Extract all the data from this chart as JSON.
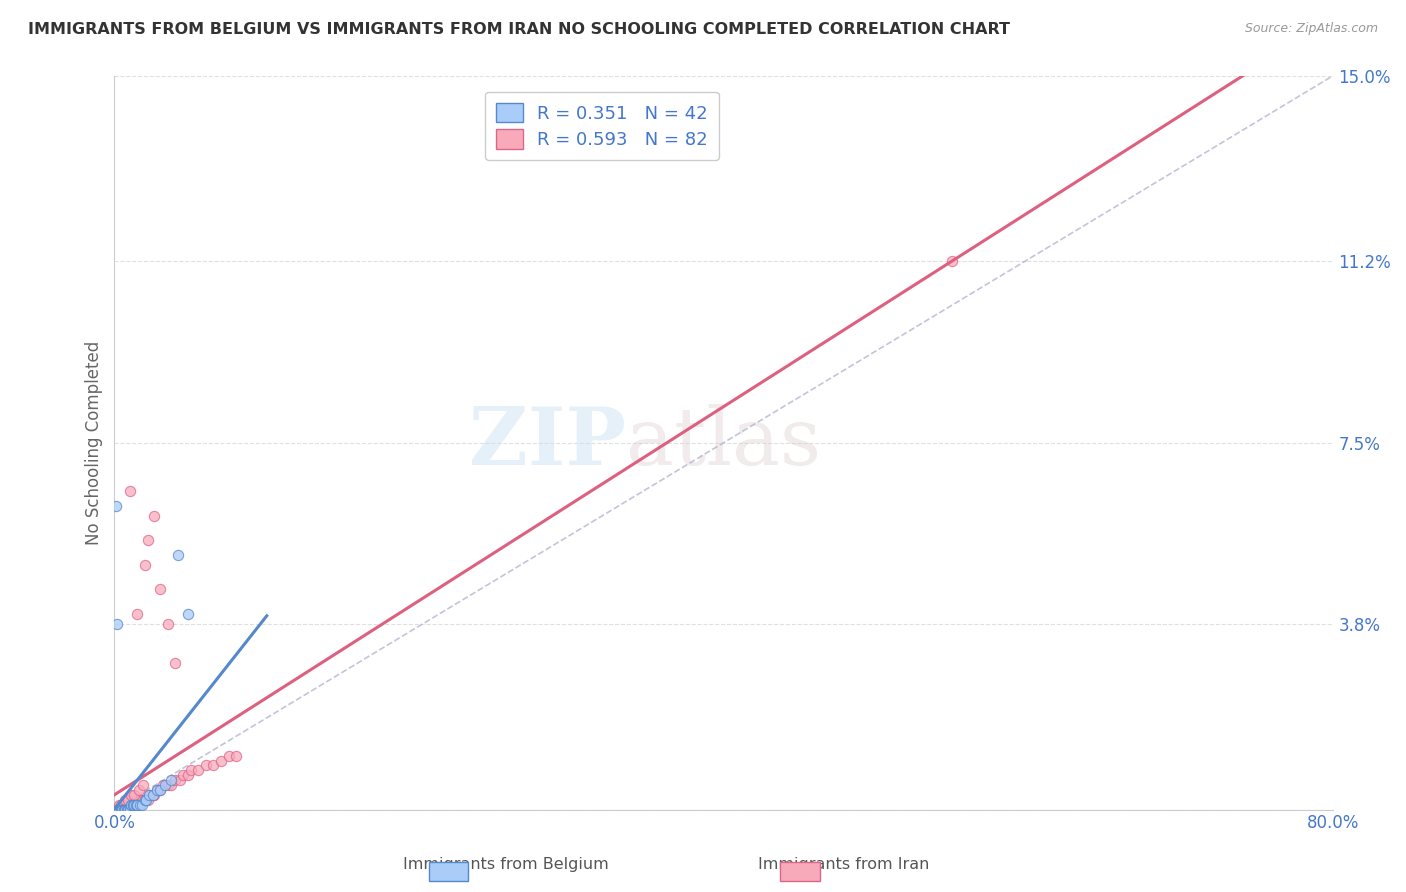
{
  "title": "IMMIGRANTS FROM BELGIUM VS IMMIGRANTS FROM IRAN NO SCHOOLING COMPLETED CORRELATION CHART",
  "source": "Source: ZipAtlas.com",
  "ylabel": "No Schooling Completed",
  "legend_label1": "Immigrants from Belgium",
  "legend_label2": "Immigrants from Iran",
  "R1": 0.351,
  "N1": 42,
  "R2": 0.593,
  "N2": 82,
  "xlim": [
    0.0,
    0.8
  ],
  "ylim": [
    0.0,
    0.15
  ],
  "xtick_vals": [
    0.0,
    0.8
  ],
  "xtick_labels": [
    "0.0%",
    "80.0%"
  ],
  "ytick_vals": [
    0.0,
    0.038,
    0.075,
    0.112,
    0.15
  ],
  "ytick_labels": [
    "",
    "3.8%",
    "7.5%",
    "11.2%",
    "15.0%"
  ],
  "color1": "#aaccf8",
  "color2": "#f8aabb",
  "edge_color1": "#5588cc",
  "edge_color2": "#dd6688",
  "line_color1": "#5588cc",
  "line_color2": "#dd6080",
  "watermark_zip": "ZIP",
  "watermark_atlas": "atlas",
  "background_color": "#ffffff",
  "grid_color": "#e0e0e0",
  "Belgium_x": [
    0.002,
    0.003,
    0.003,
    0.004,
    0.004,
    0.005,
    0.005,
    0.005,
    0.006,
    0.006,
    0.007,
    0.007,
    0.007,
    0.008,
    0.008,
    0.009,
    0.009,
    0.01,
    0.01,
    0.01,
    0.011,
    0.011,
    0.012,
    0.012,
    0.013,
    0.014,
    0.015,
    0.015,
    0.017,
    0.018,
    0.02,
    0.021,
    0.023,
    0.025,
    0.028,
    0.03,
    0.033,
    0.037,
    0.042,
    0.048,
    0.001,
    0.002
  ],
  "Belgium_y": [
    0.0,
    0.0,
    0.0,
    0.0,
    0.0,
    0.0,
    0.0,
    0.0,
    0.0,
    0.0,
    0.0,
    0.0,
    0.0,
    0.0,
    0.0,
    0.0,
    0.0,
    0.0,
    0.0,
    0.0,
    0.001,
    0.001,
    0.001,
    0.001,
    0.001,
    0.001,
    0.001,
    0.001,
    0.001,
    0.001,
    0.002,
    0.002,
    0.003,
    0.003,
    0.004,
    0.004,
    0.005,
    0.006,
    0.052,
    0.04,
    0.062,
    0.038
  ],
  "Iran_x": [
    0.0,
    0.001,
    0.001,
    0.002,
    0.002,
    0.002,
    0.003,
    0.003,
    0.003,
    0.004,
    0.004,
    0.004,
    0.005,
    0.005,
    0.005,
    0.006,
    0.006,
    0.006,
    0.007,
    0.007,
    0.008,
    0.008,
    0.009,
    0.009,
    0.01,
    0.01,
    0.011,
    0.011,
    0.012,
    0.012,
    0.013,
    0.013,
    0.014,
    0.014,
    0.015,
    0.015,
    0.016,
    0.017,
    0.018,
    0.018,
    0.02,
    0.02,
    0.022,
    0.023,
    0.025,
    0.026,
    0.028,
    0.03,
    0.032,
    0.035,
    0.037,
    0.04,
    0.043,
    0.045,
    0.048,
    0.05,
    0.055,
    0.06,
    0.065,
    0.07,
    0.075,
    0.08,
    0.001,
    0.002,
    0.003,
    0.004,
    0.005,
    0.007,
    0.009,
    0.011,
    0.013,
    0.016,
    0.019,
    0.022,
    0.026,
    0.03,
    0.035,
    0.04,
    0.01,
    0.015,
    0.02,
    0.55
  ],
  "Iran_y": [
    0.0,
    0.0,
    0.0,
    0.0,
    0.0,
    0.0,
    0.0,
    0.0,
    0.0,
    0.0,
    0.0,
    0.0,
    0.0,
    0.0,
    0.0,
    0.0,
    0.0,
    0.0,
    0.0,
    0.0,
    0.0,
    0.0,
    0.0,
    0.0,
    0.0,
    0.0,
    0.0,
    0.001,
    0.001,
    0.001,
    0.001,
    0.001,
    0.001,
    0.001,
    0.001,
    0.001,
    0.001,
    0.002,
    0.002,
    0.002,
    0.002,
    0.002,
    0.002,
    0.003,
    0.003,
    0.003,
    0.004,
    0.004,
    0.005,
    0.005,
    0.005,
    0.006,
    0.006,
    0.007,
    0.007,
    0.008,
    0.008,
    0.009,
    0.009,
    0.01,
    0.011,
    0.011,
    0.0,
    0.0,
    0.001,
    0.001,
    0.001,
    0.002,
    0.002,
    0.003,
    0.003,
    0.004,
    0.005,
    0.055,
    0.06,
    0.045,
    0.038,
    0.03,
    0.065,
    0.04,
    0.05,
    0.112
  ]
}
